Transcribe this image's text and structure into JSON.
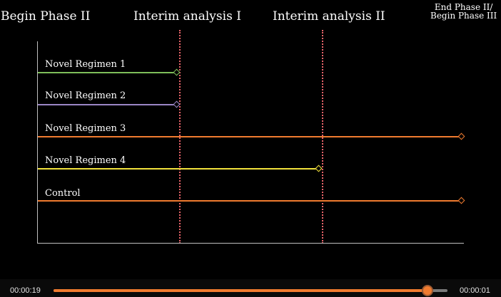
{
  "milestones": {
    "begin_phase_2": "Begin Phase II",
    "interim_1": "Interim analysis I",
    "interim_2": "Interim analysis II",
    "end_line1": "End Phase II/",
    "end_line2": "Begin Phase III"
  },
  "arms": [
    {
      "label": "Novel Regimen 1",
      "color": "#7fbf5a",
      "stop": "Interim analysis I"
    },
    {
      "label": "Novel Regimen 2",
      "color": "#9b86c6",
      "stop": "Interim analysis I"
    },
    {
      "label": "Novel Regimen 3",
      "color": "#f07b2f",
      "stop": "End Phase II/Begin Phase III"
    },
    {
      "label": "Novel Regimen 4",
      "color": "#f2e23c",
      "stop": "Interim analysis II"
    },
    {
      "label": "Control",
      "color": "#f07b2f",
      "stop": "End Phase II/Begin Phase III"
    }
  ],
  "player": {
    "elapsed": "00:00:19",
    "remaining": "00:00:01",
    "progress": 0.95,
    "accent_color": "#f07b2f"
  }
}
